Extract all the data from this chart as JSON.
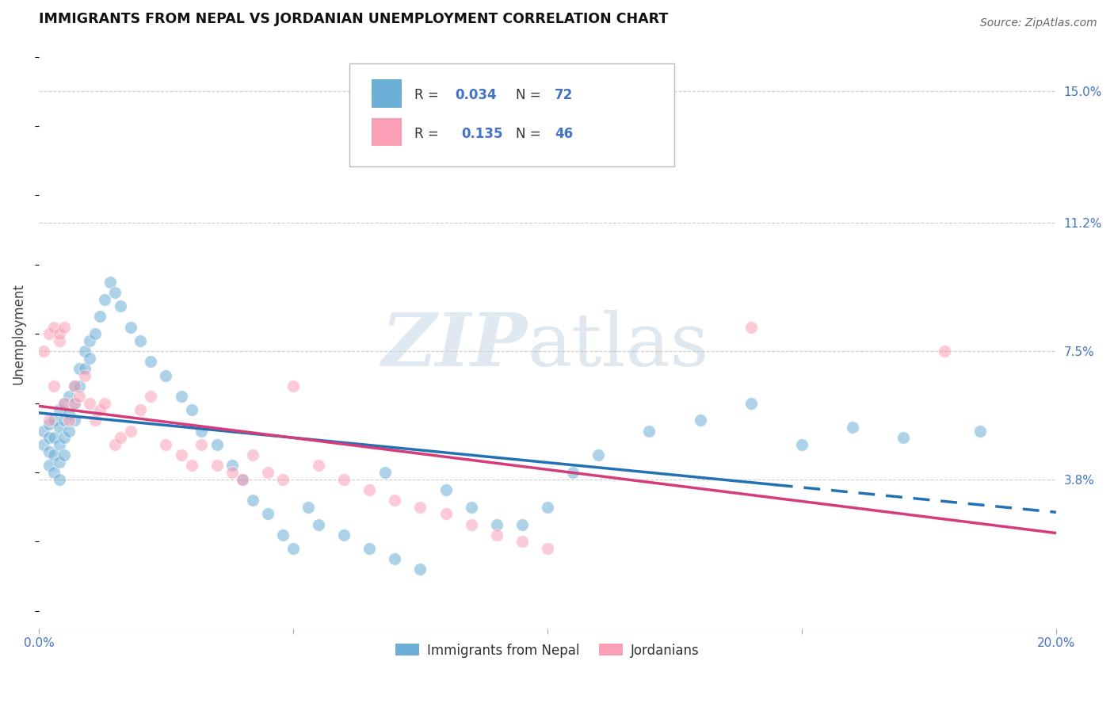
{
  "title": "IMMIGRANTS FROM NEPAL VS JORDANIAN UNEMPLOYMENT CORRELATION CHART",
  "source": "Source: ZipAtlas.com",
  "ylabel": "Unemployment",
  "xlim": [
    0.0,
    0.2
  ],
  "ylim": [
    -0.005,
    0.165
  ],
  "yticks": [
    0.038,
    0.075,
    0.112,
    0.15
  ],
  "ytick_labels": [
    "3.8%",
    "7.5%",
    "11.2%",
    "15.0%"
  ],
  "xticks": [
    0.0,
    0.05,
    0.1,
    0.15,
    0.2
  ],
  "xtick_labels": [
    "0.0%",
    "",
    "",
    "",
    "20.0%"
  ],
  "legend_r1": "R = 0.034",
  "legend_n1": "N = 72",
  "legend_r2": "R =  0.135",
  "legend_n2": "N = 46",
  "blue_color": "#6baed6",
  "pink_color": "#fa9fb5",
  "blue_line_color": "#2171b5",
  "pink_line_color": "#d63b7a",
  "nepal_x": [
    0.001,
    0.001,
    0.002,
    0.002,
    0.002,
    0.002,
    0.003,
    0.003,
    0.003,
    0.003,
    0.004,
    0.004,
    0.004,
    0.004,
    0.004,
    0.005,
    0.005,
    0.005,
    0.005,
    0.006,
    0.006,
    0.006,
    0.007,
    0.007,
    0.007,
    0.008,
    0.008,
    0.009,
    0.009,
    0.01,
    0.01,
    0.011,
    0.012,
    0.013,
    0.014,
    0.015,
    0.016,
    0.018,
    0.02,
    0.022,
    0.025,
    0.028,
    0.03,
    0.032,
    0.035,
    0.038,
    0.04,
    0.042,
    0.045,
    0.048,
    0.05,
    0.053,
    0.055,
    0.06,
    0.065,
    0.068,
    0.07,
    0.075,
    0.08,
    0.085,
    0.09,
    0.095,
    0.1,
    0.105,
    0.11,
    0.12,
    0.13,
    0.14,
    0.15,
    0.16,
    0.17,
    0.185
  ],
  "nepal_y": [
    0.052,
    0.048,
    0.054,
    0.05,
    0.046,
    0.042,
    0.055,
    0.05,
    0.045,
    0.04,
    0.058,
    0.053,
    0.048,
    0.043,
    0.038,
    0.06,
    0.055,
    0.05,
    0.045,
    0.062,
    0.057,
    0.052,
    0.065,
    0.06,
    0.055,
    0.07,
    0.065,
    0.075,
    0.07,
    0.078,
    0.073,
    0.08,
    0.085,
    0.09,
    0.095,
    0.092,
    0.088,
    0.082,
    0.078,
    0.072,
    0.068,
    0.062,
    0.058,
    0.052,
    0.048,
    0.042,
    0.038,
    0.032,
    0.028,
    0.022,
    0.018,
    0.03,
    0.025,
    0.022,
    0.018,
    0.04,
    0.015,
    0.012,
    0.035,
    0.03,
    0.025,
    0.025,
    0.03,
    0.04,
    0.045,
    0.052,
    0.055,
    0.06,
    0.048,
    0.053,
    0.05,
    0.052
  ],
  "jordan_x": [
    0.001,
    0.002,
    0.002,
    0.003,
    0.003,
    0.004,
    0.004,
    0.005,
    0.005,
    0.006,
    0.007,
    0.007,
    0.008,
    0.009,
    0.01,
    0.011,
    0.012,
    0.013,
    0.015,
    0.016,
    0.018,
    0.02,
    0.022,
    0.025,
    0.028,
    0.03,
    0.032,
    0.035,
    0.038,
    0.04,
    0.042,
    0.045,
    0.048,
    0.05,
    0.055,
    0.06,
    0.065,
    0.07,
    0.075,
    0.08,
    0.085,
    0.09,
    0.095,
    0.1,
    0.14,
    0.178
  ],
  "jordan_y": [
    0.075,
    0.08,
    0.055,
    0.082,
    0.065,
    0.078,
    0.08,
    0.082,
    0.06,
    0.055,
    0.065,
    0.06,
    0.062,
    0.068,
    0.06,
    0.055,
    0.058,
    0.06,
    0.048,
    0.05,
    0.052,
    0.058,
    0.062,
    0.048,
    0.045,
    0.042,
    0.048,
    0.042,
    0.04,
    0.038,
    0.045,
    0.04,
    0.038,
    0.065,
    0.042,
    0.038,
    0.035,
    0.032,
    0.03,
    0.028,
    0.025,
    0.022,
    0.02,
    0.018,
    0.082,
    0.075
  ]
}
